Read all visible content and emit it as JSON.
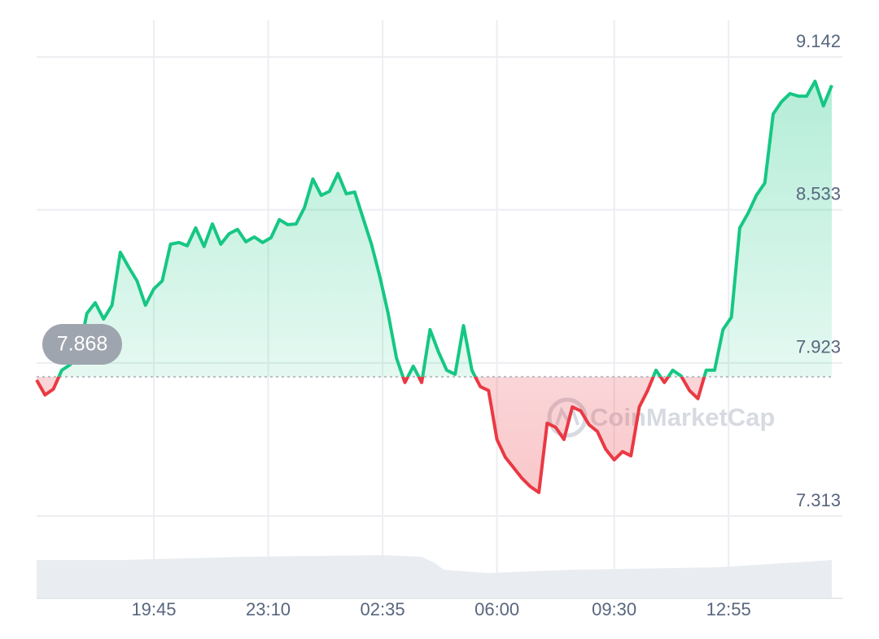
{
  "chart_data": {
    "type": "line",
    "x": [
      975,
      990,
      1005,
      1020,
      1035,
      1050,
      1065,
      1080,
      1095,
      1110,
      1125,
      1140,
      1155,
      1170,
      1185,
      1200,
      1215,
      1230,
      1245,
      1260,
      1275,
      1290,
      1305,
      1320,
      1335,
      1350,
      1365,
      1380,
      1395,
      1410,
      1425,
      1440,
      1455,
      1470,
      1485,
      1500,
      1515,
      1530,
      1545,
      1560,
      1575,
      1590,
      1605,
      1620,
      1635,
      1650,
      1665,
      1680,
      1695,
      1710,
      1725,
      1740,
      1755,
      1770,
      1785,
      1800,
      1815,
      1830,
      1845,
      1860,
      1875,
      1890,
      1905,
      1920,
      1935,
      1950,
      1965,
      1980,
      1995,
      2010,
      2025,
      2040,
      2055,
      2070,
      2085,
      2100,
      2115,
      2130,
      2145,
      2160,
      2175,
      2190,
      2205,
      2220,
      2235,
      2250,
      2265,
      2280,
      2295,
      2310,
      2325,
      2340,
      2355,
      2370,
      2385,
      2400
    ],
    "values": [
      7.855,
      7.796,
      7.819,
      7.894,
      7.916,
      7.949,
      8.12,
      8.163,
      8.098,
      8.153,
      8.364,
      8.305,
      8.25,
      8.153,
      8.218,
      8.25,
      8.396,
      8.403,
      8.39,
      8.461,
      8.387,
      8.477,
      8.396,
      8.438,
      8.455,
      8.406,
      8.425,
      8.403,
      8.422,
      8.494,
      8.474,
      8.477,
      8.542,
      8.656,
      8.591,
      8.607,
      8.678,
      8.597,
      8.604,
      8.5,
      8.396,
      8.267,
      8.12,
      7.942,
      7.845,
      7.91,
      7.845,
      8.056,
      7.968,
      7.894,
      7.878,
      8.072,
      7.894,
      7.829,
      7.813,
      7.618,
      7.547,
      7.505,
      7.463,
      7.43,
      7.407,
      7.683,
      7.667,
      7.618,
      7.748,
      7.732,
      7.677,
      7.65,
      7.579,
      7.537,
      7.57,
      7.553,
      7.748,
      7.813,
      7.894,
      7.845,
      7.894,
      7.871,
      7.813,
      7.781,
      7.894,
      7.894,
      8.056,
      8.105,
      8.461,
      8.52,
      8.591,
      8.64,
      8.915,
      8.964,
      8.996,
      8.986,
      8.986,
      9.045,
      8.947,
      9.029
    ],
    "xlim": [
      975,
      2400
    ],
    "xticks": [
      {
        "value": 1185,
        "label": "19:45"
      },
      {
        "value": 1390,
        "label": "23:10"
      },
      {
        "value": 1595,
        "label": "02:35"
      },
      {
        "value": 1800,
        "label": "06:00"
      },
      {
        "value": 2010,
        "label": "09:30"
      },
      {
        "value": 2215,
        "label": "12:55"
      }
    ],
    "ylim": [
      7.313,
      9.142
    ],
    "yticks": [
      7.313,
      7.923,
      8.533,
      9.142
    ],
    "baseline": 7.868,
    "up_color": "#16c784",
    "down_color": "#ea3943",
    "grid": true,
    "watermark": "CoinMarketCap"
  }
}
